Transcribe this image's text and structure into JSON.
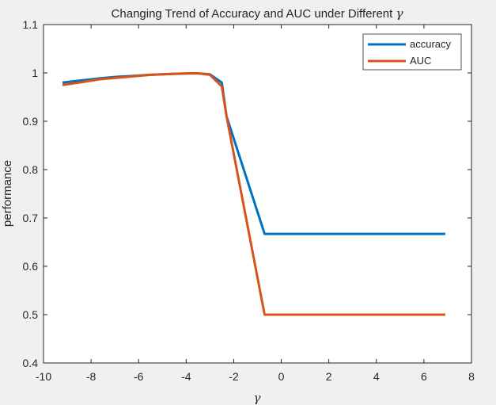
{
  "chart_data": {
    "type": "line",
    "title": "Changing Trend of Accuracy and AUC under Different ",
    "title_symbol": "γ",
    "xlabel": "γ",
    "ylabel": "performance",
    "xlim": [
      -10,
      8
    ],
    "ylim": [
      0.4,
      1.1
    ],
    "xticks": [
      "-10",
      "-8",
      "-6",
      "-4",
      "-2",
      "0",
      "2",
      "4",
      "6",
      "8"
    ],
    "yticks": [
      "0.4",
      "0.5",
      "0.6",
      "0.7",
      "0.8",
      "0.9",
      "1",
      "1.1"
    ],
    "grid": false,
    "legend_position": "top-right",
    "series": [
      {
        "name": "accuracy",
        "color": "#0072BD",
        "x": [
          -9.2,
          -8.5,
          -7.6,
          -6.9,
          -6.2,
          -5.5,
          -4.6,
          -3.9,
          -3.5,
          -3.0,
          -2.5,
          -2.3,
          -0.7,
          6.9
        ],
        "y": [
          0.98,
          0.984,
          0.989,
          0.992,
          0.994,
          0.996,
          0.998,
          0.999,
          0.999,
          0.997,
          0.98,
          0.91,
          0.667,
          0.667
        ]
      },
      {
        "name": "AUC",
        "color": "#D95319",
        "x": [
          -9.2,
          -8.5,
          -7.6,
          -6.9,
          -6.2,
          -5.5,
          -4.6,
          -3.9,
          -3.5,
          -3.0,
          -2.5,
          -2.3,
          -0.7,
          6.9
        ],
        "y": [
          0.975,
          0.98,
          0.987,
          0.99,
          0.993,
          0.996,
          0.998,
          0.999,
          0.999,
          0.996,
          0.972,
          0.91,
          0.5,
          0.5
        ]
      }
    ]
  }
}
